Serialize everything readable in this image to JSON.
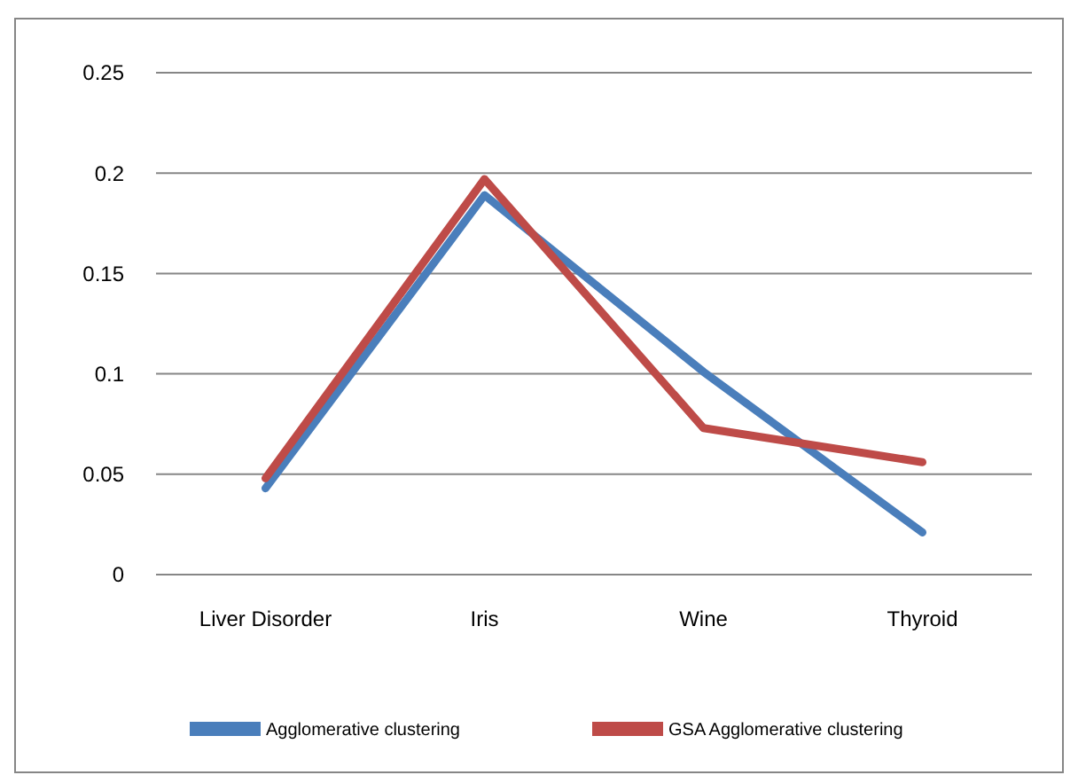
{
  "chart_data": {
    "type": "line",
    "categories": [
      "Liver Disorder",
      "Iris",
      "Wine",
      "Thyroid"
    ],
    "series": [
      {
        "name": "Agglomerative clustering",
        "color": "#4a7ebb",
        "values": [
          0.043,
          0.189,
          0.101,
          0.021
        ]
      },
      {
        "name": "GSA Agglomerative clustering",
        "color": "#be4b48",
        "values": [
          0.048,
          0.197,
          0.073,
          0.056
        ]
      }
    ],
    "ylim": [
      0,
      0.25
    ],
    "yticks": [
      0,
      0.05,
      0.1,
      0.15,
      0.2,
      0.25
    ],
    "grid": "y",
    "legend": "bottom",
    "marker": "none",
    "line_style": "solid"
  }
}
